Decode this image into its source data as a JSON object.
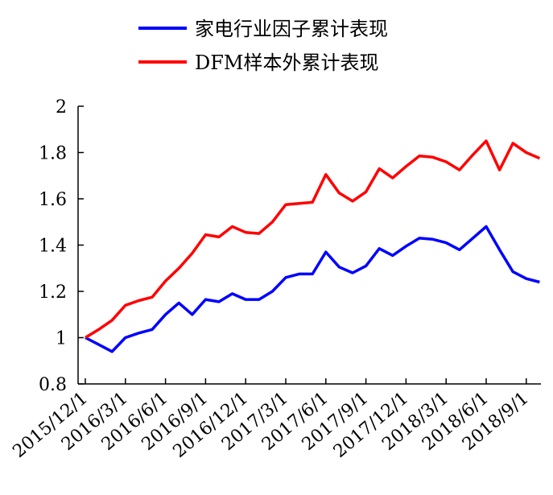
{
  "chart_data": {
    "type": "line",
    "title": "",
    "xlabel": "",
    "ylabel": "",
    "ylim": [
      0.8,
      2.0
    ],
    "y_ticks": [
      "0.8",
      "1",
      "1.2",
      "1.4",
      "1.6",
      "1.8",
      "2"
    ],
    "x_tick_labels": [
      "2015/12/1",
      "2016/3/1",
      "2016/6/1",
      "2016/9/1",
      "2016/12/1",
      "2017/3/1",
      "2017/6/1",
      "2017/9/1",
      "2017/12/1",
      "2018/3/1",
      "2018/6/1",
      "2018/9/1"
    ],
    "x": [
      "2015/12/1",
      "2016/1/1",
      "2016/2/1",
      "2016/3/1",
      "2016/4/1",
      "2016/5/1",
      "2016/6/1",
      "2016/7/1",
      "2016/8/1",
      "2016/9/1",
      "2016/10/1",
      "2016/11/1",
      "2016/12/1",
      "2017/1/1",
      "2017/2/1",
      "2017/3/1",
      "2017/4/1",
      "2017/5/1",
      "2017/6/1",
      "2017/7/1",
      "2017/8/1",
      "2017/9/1",
      "2017/10/1",
      "2017/11/1",
      "2017/12/1",
      "2018/1/1",
      "2018/2/1",
      "2018/3/1",
      "2018/4/1",
      "2018/5/1",
      "2018/6/1",
      "2018/7/1",
      "2018/8/1",
      "2018/9/1",
      "2018/10/1"
    ],
    "grid": false,
    "legend_position": "top",
    "series": [
      {
        "name": "家电行业因子累计表现",
        "color": "#0000ff",
        "values": [
          1.0,
          0.97,
          0.94,
          1.0,
          1.02,
          1.035,
          1.1,
          1.15,
          1.1,
          1.165,
          1.155,
          1.19,
          1.165,
          1.165,
          1.2,
          1.26,
          1.275,
          1.275,
          1.37,
          1.305,
          1.28,
          1.31,
          1.385,
          1.355,
          1.395,
          1.43,
          1.425,
          1.41,
          1.38,
          1.43,
          1.48,
          1.38,
          1.285,
          1.255,
          1.24
        ]
      },
      {
        "name": "DFM样本外累计表现",
        "color": "#ff0000",
        "values": [
          1.0,
          1.035,
          1.075,
          1.14,
          1.16,
          1.175,
          1.245,
          1.3,
          1.365,
          1.445,
          1.435,
          1.48,
          1.455,
          1.45,
          1.5,
          1.575,
          1.58,
          1.585,
          1.705,
          1.625,
          1.59,
          1.63,
          1.73,
          1.69,
          1.74,
          1.785,
          1.78,
          1.76,
          1.725,
          1.79,
          1.85,
          1.725,
          1.84,
          1.8,
          1.775
        ]
      }
    ]
  }
}
